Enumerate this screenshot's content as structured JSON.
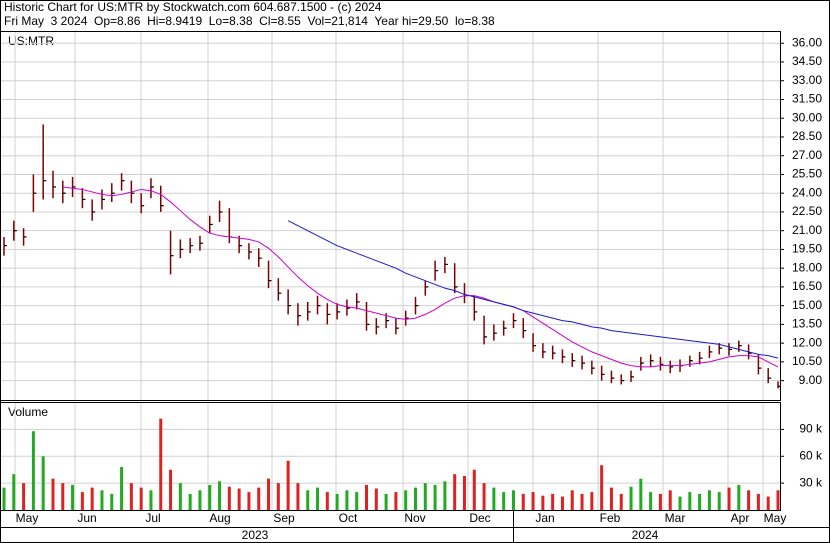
{
  "header": {
    "line1": "Historic Chart for US:MTR by Stockwatch.com 604.687.1500 - (c) 2024",
    "line2": "Fri May  3 2024  Op=8.86  Hi=8.9419  Lo=8.38  Cl=8.55  Vol=21,814  Year hi=29.50  lo=8.38"
  },
  "months": [
    "May",
    "Jun",
    "Jul",
    "Aug",
    "Sep",
    "Oct",
    "Nov",
    "Dec",
    "Jan",
    "Feb",
    "Mar",
    "Apr",
    "May"
  ],
  "years": [
    "2023",
    "2024"
  ],
  "chart_data": [
    {
      "type": "ohlc",
      "title": "US:MTR",
      "color": "#800000",
      "grid": true,
      "ylim": [
        7.45,
        36.9
      ],
      "yticks": [
        {
          "value": 9,
          "label": "9.00"
        },
        {
          "value": 10.5,
          "label": "10.50"
        },
        {
          "value": 12,
          "label": "12.00"
        },
        {
          "value": 13.5,
          "label": "13.50"
        },
        {
          "value": 15,
          "label": "15.00"
        },
        {
          "value": 16.5,
          "label": "16.50"
        },
        {
          "value": 18,
          "label": "18.00"
        },
        {
          "value": 19.5,
          "label": "19.50"
        },
        {
          "value": 21,
          "label": "21.00"
        },
        {
          "value": 22.5,
          "label": "22.50"
        },
        {
          "value": 24,
          "label": "24.00"
        },
        {
          "value": 25.5,
          "label": "25.50"
        },
        {
          "value": 27,
          "label": "27.00"
        },
        {
          "value": 28.5,
          "label": "28.50"
        },
        {
          "value": 30,
          "label": "30.00"
        },
        {
          "value": 31.5,
          "label": "31.50"
        },
        {
          "value": 33,
          "label": "33.00"
        },
        {
          "value": 34.5,
          "label": "34.50"
        },
        {
          "value": 36,
          "label": "36.00"
        }
      ],
      "close": [
        19.8,
        21,
        20.5,
        24,
        25,
        24.5,
        24,
        24.5,
        23.5,
        22.5,
        23.5,
        24,
        25,
        24,
        23,
        24.5,
        23,
        19,
        19.5,
        19.8,
        20,
        21.5,
        22.5,
        20.5,
        19.8,
        19.3,
        18.8,
        17,
        16,
        15,
        14.2,
        14.5,
        15,
        14.3,
        14.5,
        14.8,
        15.3,
        13.5,
        13.3,
        13.8,
        13.2,
        14,
        15,
        16.5,
        17.8,
        18.3,
        16.5,
        15.8,
        14.5,
        12.5,
        12.8,
        13.2,
        13.8,
        13,
        11.8,
        11.3,
        11.2,
        10.9,
        10.6,
        10.4,
        10,
        9.5,
        9.2,
        9,
        9.3,
        10.4,
        10.6,
        10.3,
        10.1,
        10.2,
        10.6,
        10.8,
        11.3,
        11.6,
        11.5,
        11.8,
        11.2,
        10,
        9.2,
        8.55
      ],
      "high": [
        20.5,
        21.8,
        21.2,
        25.5,
        29.5,
        25.8,
        25,
        25.3,
        24.4,
        23.5,
        24.3,
        24.8,
        25.6,
        25,
        24,
        25.2,
        24.6,
        21,
        20.3,
        20.4,
        20.6,
        22.2,
        23.4,
        22.8,
        20.6,
        20,
        19.6,
        18.6,
        17.2,
        16.3,
        15.2,
        15.3,
        15.8,
        15.2,
        15.2,
        15.5,
        16,
        15.3,
        14,
        14.4,
        14,
        14.6,
        15.7,
        17,
        18.6,
        18.9,
        18.4,
        16.8,
        15.8,
        14.2,
        13.5,
        13.8,
        14.4,
        14,
        12.8,
        12,
        11.8,
        11.5,
        11.2,
        11,
        10.6,
        10.2,
        9.8,
        9.5,
        9.8,
        10.9,
        11.1,
        10.9,
        10.6,
        10.7,
        11,
        11.3,
        11.8,
        12,
        12,
        12.2,
        11.9,
        11.1,
        10,
        8.94
      ],
      "low": [
        19,
        20.2,
        19.8,
        22.5,
        23.5,
        23.6,
        23.2,
        23.7,
        22.8,
        21.8,
        22.7,
        23.3,
        24.2,
        23.2,
        22.4,
        23.6,
        22.5,
        17.5,
        18.8,
        19.2,
        19.4,
        20.8,
        21.7,
        20,
        19.2,
        18.7,
        18.1,
        16.4,
        15.4,
        14.3,
        13.4,
        13.8,
        14.3,
        13.5,
        13.9,
        14.2,
        14.7,
        13,
        12.7,
        13.2,
        12.7,
        13.4,
        14.3,
        15.8,
        17,
        17.6,
        16,
        15.2,
        13.8,
        11.9,
        12.2,
        12.6,
        13.2,
        12.4,
        11.3,
        10.8,
        10.7,
        10.4,
        10.1,
        9.9,
        9.5,
        9,
        8.8,
        8.7,
        8.9,
        9.8,
        10.1,
        9.8,
        9.6,
        9.7,
        10.1,
        10.3,
        10.8,
        11.1,
        11,
        11.3,
        10.7,
        9.5,
        8.8,
        8.38
      ],
      "series": [
        {
          "color": "#cc00cc",
          "values": [
            null,
            null,
            null,
            null,
            null,
            null,
            24.5,
            24.4,
            24.3,
            24.1,
            23.9,
            23.8,
            23.9,
            24.1,
            24.3,
            24.2,
            23.9,
            23.3,
            22.6,
            21.9,
            21.3,
            20.8,
            20.6,
            20.5,
            20.4,
            20.3,
            20.1,
            19.6,
            18.9,
            18.1,
            17.3,
            16.6,
            16,
            15.5,
            15.1,
            14.9,
            14.8,
            14.6,
            14.4,
            14.2,
            14,
            13.9,
            14,
            14.3,
            14.7,
            15.2,
            15.6,
            15.8,
            15.8,
            15.6,
            15.3,
            15.1,
            14.9,
            14.6,
            14.1,
            13.6,
            13.1,
            12.6,
            12.1,
            11.7,
            11.3,
            11,
            10.7,
            10.4,
            10.2,
            10.1,
            10.1,
            10.2,
            10.2,
            10.2,
            10.3,
            10.4,
            10.5,
            10.7,
            10.9,
            11,
            11,
            10.9,
            10.5,
            10.1
          ]
        },
        {
          "color": "#1a1ad0",
          "values": [
            null,
            null,
            null,
            null,
            null,
            null,
            null,
            null,
            null,
            null,
            null,
            null,
            null,
            null,
            null,
            null,
            null,
            null,
            null,
            null,
            null,
            null,
            null,
            null,
            null,
            null,
            null,
            null,
            null,
            21.8,
            21.4,
            21,
            20.6,
            20.2,
            19.8,
            19.5,
            19.2,
            18.9,
            18.6,
            18.3,
            18,
            17.6,
            17.3,
            17,
            16.7,
            16.4,
            16.2,
            15.9,
            15.7,
            15.5,
            15.3,
            15.1,
            14.9,
            14.6,
            14.4,
            14.2,
            14,
            13.8,
            13.7,
            13.5,
            13.3,
            13.2,
            13,
            12.9,
            12.8,
            12.7,
            12.6,
            12.5,
            12.4,
            12.3,
            12.2,
            12.1,
            12,
            11.9,
            11.7,
            11.5,
            11.3,
            11.1,
            11,
            10.8
          ]
        }
      ]
    },
    {
      "type": "bar",
      "title": "Volume",
      "up_color": "#22aa22",
      "down_color": "#dd2222",
      "grid": true,
      "ylim": [
        0,
        119.5
      ],
      "yticks": [
        {
          "value": 30,
          "label": "30 k"
        },
        {
          "value": 60,
          "label": "60 k"
        },
        {
          "value": 90,
          "label": "90 k"
        }
      ],
      "values": [
        25,
        40,
        30,
        88,
        60,
        35,
        30,
        28,
        20,
        25,
        22,
        18,
        48,
        30,
        25,
        22,
        102,
        45,
        30,
        18,
        22,
        28,
        32,
        26,
        24,
        20,
        25,
        35,
        30,
        55,
        30,
        22,
        25,
        20,
        18,
        22,
        20,
        28,
        24,
        18,
        20,
        22,
        25,
        30,
        28,
        32,
        40,
        38,
        45,
        30,
        25,
        20,
        22,
        18,
        20,
        16,
        18,
        15,
        22,
        18,
        20,
        50,
        25,
        18,
        26,
        35,
        20,
        18,
        22,
        15,
        20,
        18,
        22,
        20,
        25,
        28,
        22,
        18,
        15,
        22
      ]
    }
  ]
}
